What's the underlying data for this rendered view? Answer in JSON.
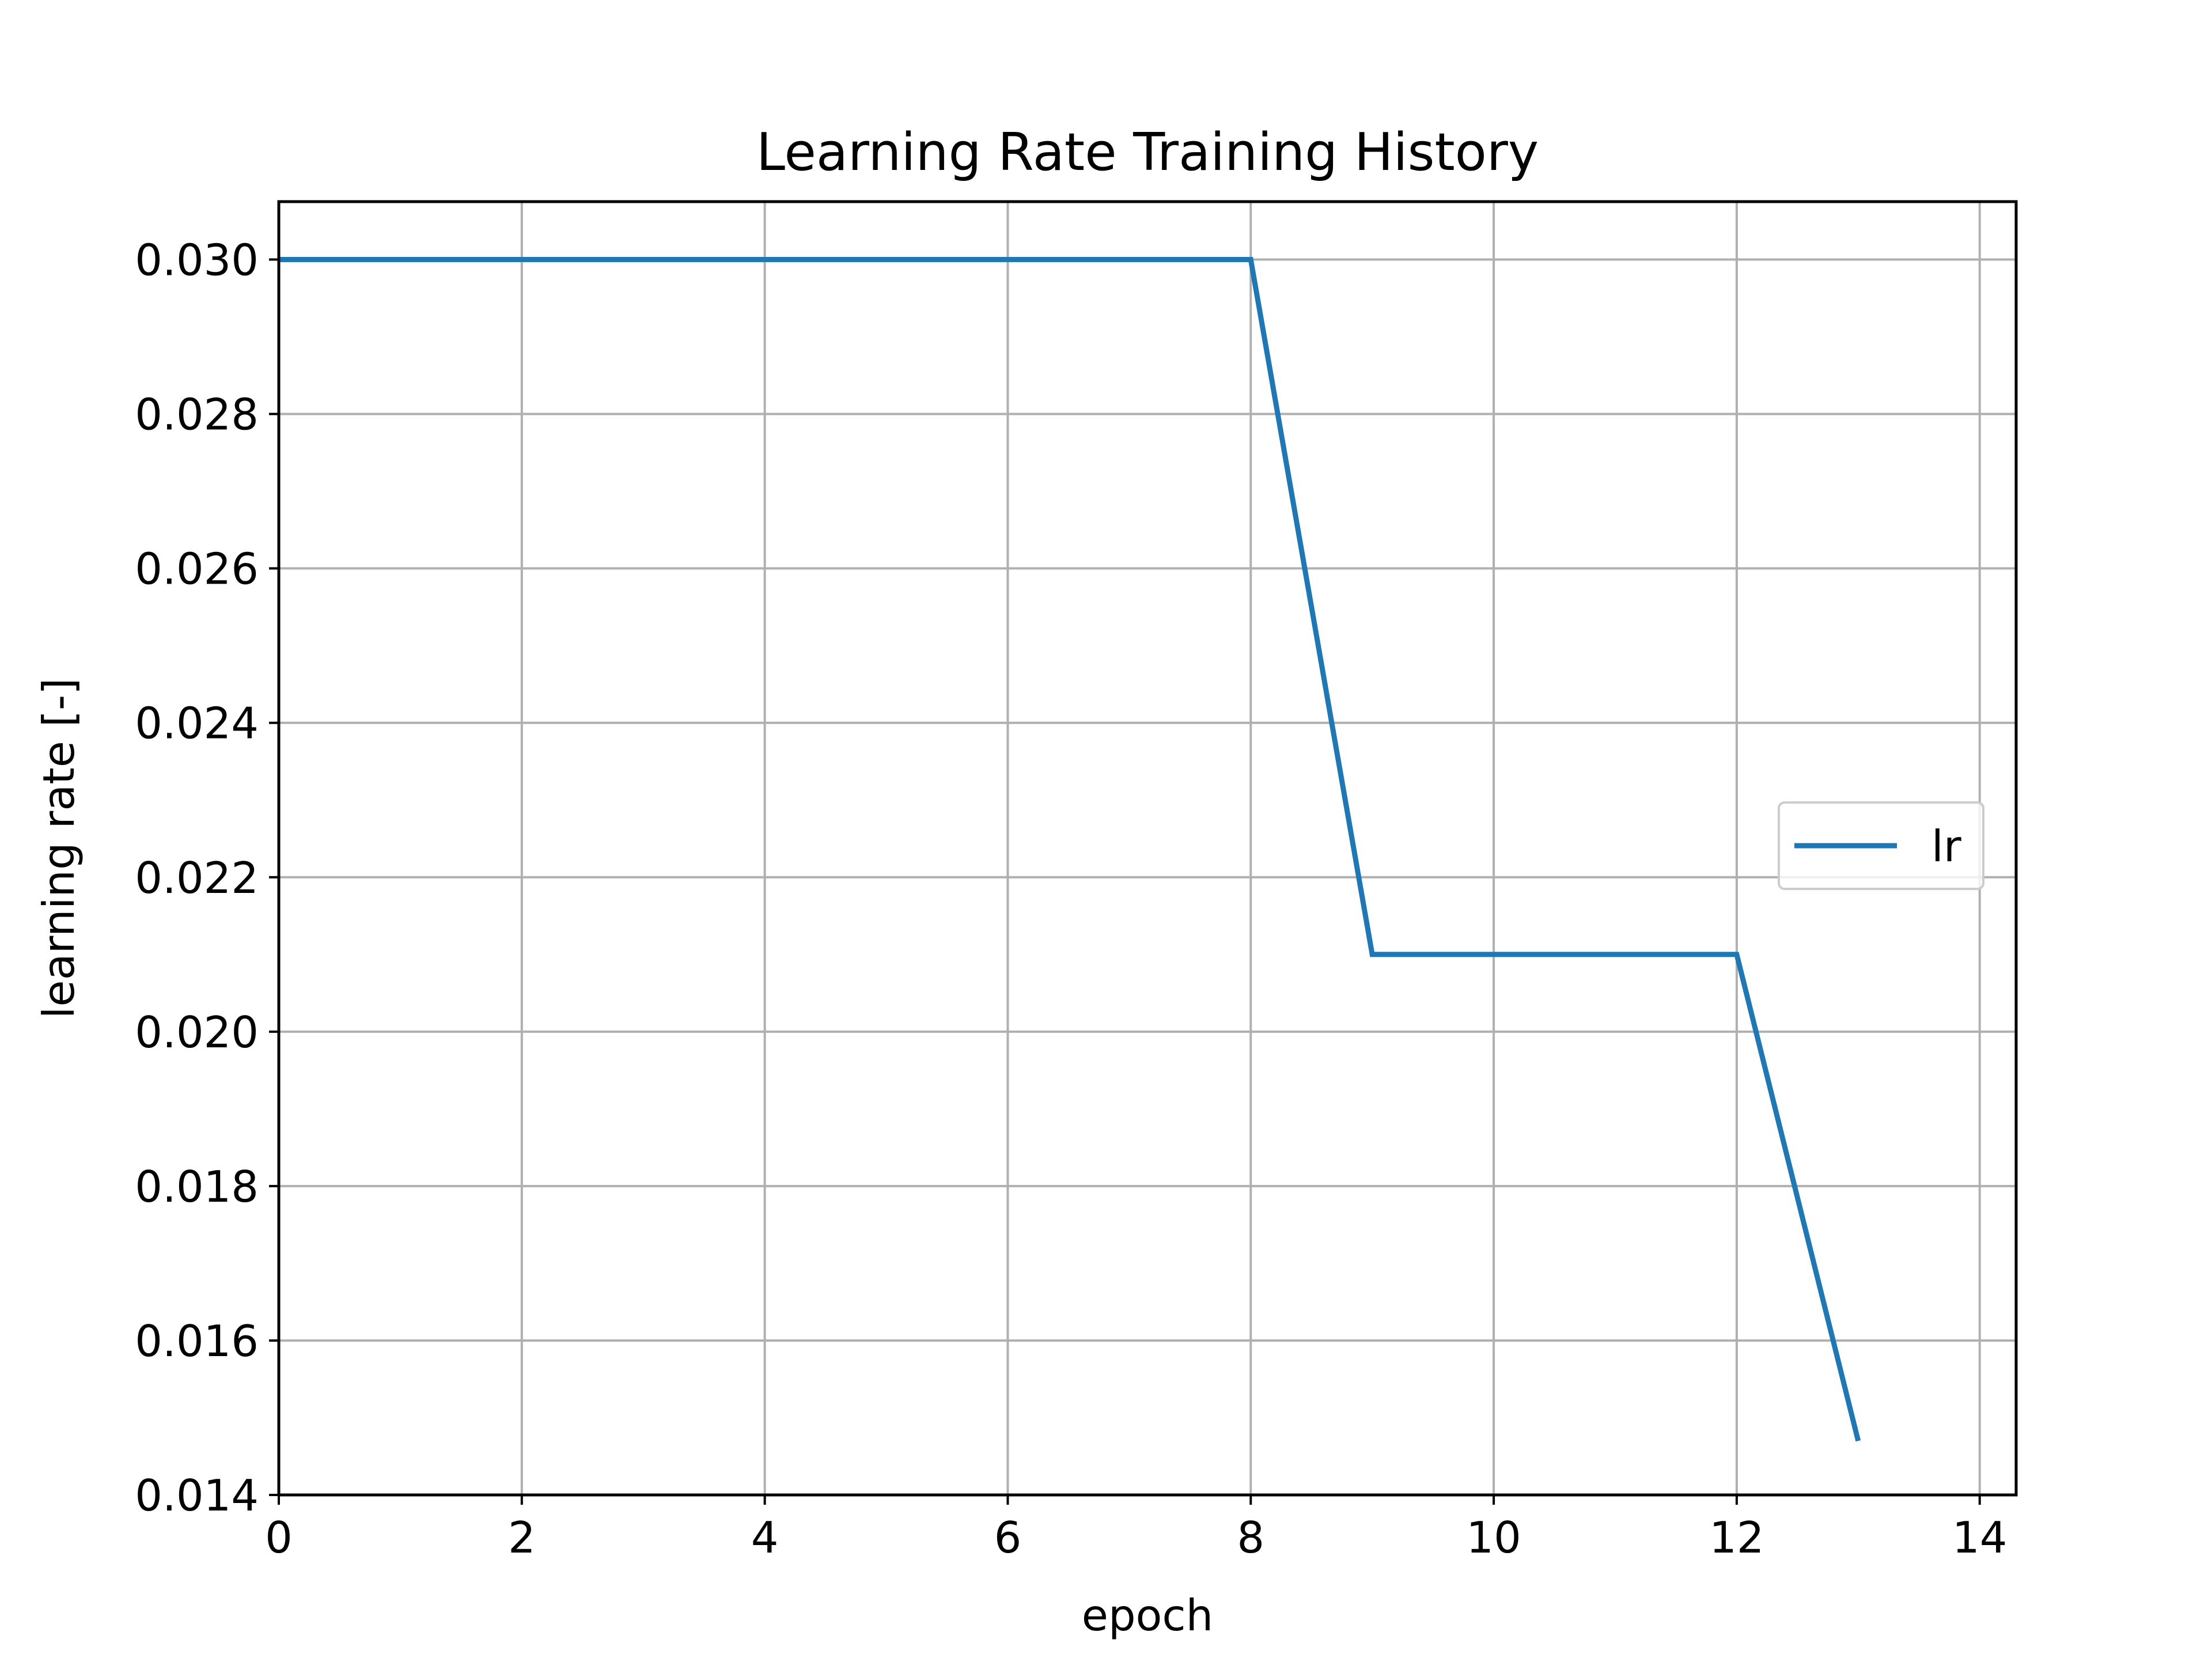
{
  "chart_data": {
    "type": "line",
    "title": "Learning Rate Training History",
    "xlabel": "epoch",
    "ylabel": "learning rate [-]",
    "xlim": [
      0,
      14.3
    ],
    "ylim": [
      0.014,
      0.03075
    ],
    "x_ticks": [
      0,
      2,
      4,
      6,
      8,
      10,
      12,
      14
    ],
    "x_tick_labels": [
      "0",
      "2",
      "4",
      "6",
      "8",
      "10",
      "12",
      "14"
    ],
    "y_ticks": [
      0.014,
      0.016,
      0.018,
      0.02,
      0.022,
      0.024,
      0.026,
      0.028,
      0.03
    ],
    "y_tick_labels": [
      "0.014",
      "0.016",
      "0.018",
      "0.020",
      "0.022",
      "0.024",
      "0.026",
      "0.028",
      "0.030"
    ],
    "grid": true,
    "legend_position": "center-right",
    "series": [
      {
        "name": "lr",
        "color": "#1f77b4",
        "x": [
          0,
          1,
          2,
          3,
          4,
          5,
          6,
          7,
          8,
          9,
          10,
          11,
          12,
          13
        ],
        "y": [
          0.03,
          0.03,
          0.03,
          0.03,
          0.03,
          0.03,
          0.03,
          0.03,
          0.03,
          0.021,
          0.021,
          0.021,
          0.021,
          0.0147
        ]
      }
    ]
  }
}
